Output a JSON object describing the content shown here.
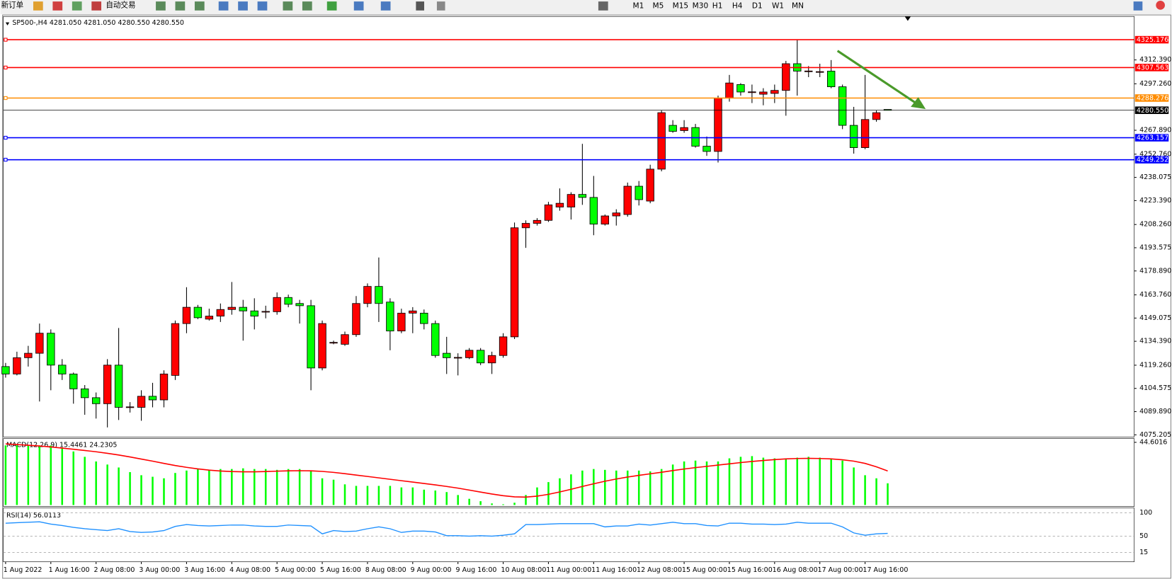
{
  "toolbar": {
    "new_order": "新订单",
    "auto_trading": "自动交易",
    "timeframes": [
      "M1",
      "M5",
      "M15",
      "M30",
      "H1",
      "H4",
      "D1",
      "W1",
      "MN"
    ]
  },
  "chart_data": [
    {
      "type": "candlestick",
      "title": "SP500-,H4  4281.050 4281.050 4280.550 4280.550",
      "categories": [
        "1 Aug 2022",
        null,
        null,
        null,
        "1 Aug 16:00",
        null,
        null,
        null,
        "2 Aug 08:00",
        null,
        null,
        null,
        "3 Aug 00:00",
        null,
        null,
        null,
        "3 Aug 16:00",
        null,
        null,
        null,
        "4 Aug 08:00",
        null,
        null,
        null,
        "5 Aug 00:00",
        null,
        null,
        null,
        "5 Aug 16:00",
        null,
        null,
        null,
        "8 Aug 08:00",
        null,
        null,
        null,
        "9 Aug 00:00",
        null,
        null,
        null,
        "9 Aug 16:00",
        null,
        null,
        null,
        "10 Aug 08:00",
        null,
        null,
        null,
        "11 Aug 00:00",
        null,
        null,
        null,
        "11 Aug 16:00",
        null,
        null,
        null,
        "12 Aug 08:00",
        null,
        null,
        null,
        "15 Aug 00:00",
        null,
        null,
        null,
        "15 Aug 16:00",
        null,
        null,
        null,
        "16 Aug 08:00",
        null,
        null,
        null,
        "17 Aug 00:00",
        null,
        null,
        null,
        "17 Aug 16:00",
        null,
        null
      ],
      "open": [
        4118.4,
        4113.7,
        4124.0,
        4126.8,
        4139.5,
        4119.3,
        4113.7,
        4104.3,
        4098.7,
        4094.9,
        4119.3,
        4092.6,
        4092.6,
        4099.6,
        4097.3,
        4112.8,
        4145.6,
        4155.9,
        4148.4,
        4150.3,
        4154.5,
        4155.9,
        4153.6,
        4153.0,
        4153.1,
        4162.1,
        4158.3,
        4156.9,
        4117.5,
        4133.4,
        4132.5,
        4138.6,
        4158.3,
        4169.1,
        4159.2,
        4140.9,
        4152.2,
        4152.2,
        4145.6,
        4126.8,
        4124.0,
        4124.0,
        4128.7,
        4120.7,
        4125.4,
        4137.2,
        4206.2,
        4209.0,
        4210.9,
        4219.3,
        4219.3,
        4227.3,
        4225.4,
        4208.5,
        4213.7,
        4214.6,
        4232.5,
        4223.1,
        4243.3,
        4271.0,
        4267.7,
        4269.6,
        4257.8,
        4254.5,
        4288.3,
        4296.8,
        4292.0,
        4290.7,
        4291.2,
        4293.1,
        4310.0,
        4305.2,
        4304.8,
        4305.3,
        4295.4,
        4271.0,
        4256.9,
        4274.7,
        4281.05
      ],
      "high": [
        4120.7,
        4127.8,
        4131.5,
        4145.6,
        4141.9,
        4123.1,
        4114.6,
        4106.7,
        4102.0,
        4123.1,
        4142.8,
        4095.9,
        4103.4,
        4108.1,
        4116.0,
        4147.5,
        4168.6,
        4157.4,
        4155.0,
        4158.3,
        4171.9,
        4160.6,
        4161.6,
        4156.9,
        4165.3,
        4163.9,
        4160.6,
        4160.6,
        4147.5,
        4134.8,
        4140.5,
        4163.0,
        4171.0,
        4187.4,
        4161.6,
        4155.0,
        4156.0,
        4154.5,
        4147.5,
        4137.2,
        4126.8,
        4130.1,
        4130.1,
        4127.8,
        4139.5,
        4209.5,
        4210.9,
        4212.3,
        4222.6,
        4231.1,
        4228.7,
        4259.3,
        4239.0,
        4214.6,
        4217.9,
        4234.8,
        4235.8,
        4246.1,
        4280.4,
        4274.3,
        4274.3,
        4271.9,
        4263.9,
        4289.8,
        4302.9,
        4297.7,
        4296.8,
        4294.5,
        4296.8,
        4311.8,
        4325.0,
        4308.5,
        4310.0,
        4312.3,
        4296.8,
        4282.7,
        4302.9,
        4280.4,
        4281.05
      ],
      "low": [
        4111.4,
        4112.8,
        4118.4,
        4096.3,
        4103.4,
        4109.9,
        4094.9,
        4087.9,
        4085.5,
        4079.9,
        4084.6,
        4089.3,
        4084.1,
        4092.6,
        4092.6,
        4109.9,
        4139.5,
        4148.4,
        4147.5,
        4146.6,
        4151.2,
        4134.8,
        4141.9,
        4148.9,
        4151.2,
        4155.9,
        4145.6,
        4103.4,
        4116.0,
        4132.5,
        4131.5,
        4137.2,
        4155.9,
        4146.6,
        4128.7,
        4139.5,
        4139.5,
        4141.9,
        4124.0,
        4113.7,
        4112.8,
        4123.1,
        4119.3,
        4113.7,
        4124.0,
        4135.8,
        4193.5,
        4207.6,
        4209.9,
        4217.0,
        4211.4,
        4220.7,
        4201.5,
        4207.6,
        4207.6,
        4213.2,
        4220.3,
        4221.7,
        4241.9,
        4266.3,
        4266.3,
        4256.9,
        4251.7,
        4247.5,
        4286.0,
        4289.8,
        4285.1,
        4283.7,
        4285.1,
        4277.1,
        4289.8,
        4301.5,
        4301.5,
        4294.5,
        4268.6,
        4253.1,
        4255.9,
        4273.3,
        4280.55
      ],
      "close": [
        4113.7,
        4124.0,
        4126.8,
        4139.5,
        4119.3,
        4113.7,
        4104.3,
        4098.7,
        4094.9,
        4119.3,
        4092.6,
        4092.9,
        4099.6,
        4097.3,
        4113.7,
        4145.6,
        4155.9,
        4149.3,
        4150.3,
        4154.5,
        4155.9,
        4153.6,
        4150.3,
        4153.3,
        4162.1,
        4157.8,
        4156.9,
        4117.5,
        4145.6,
        4133.7,
        4138.6,
        4158.3,
        4169.1,
        4158.3,
        4140.9,
        4152.2,
        4153.6,
        4145.6,
        4125.4,
        4124.0,
        4124.2,
        4128.7,
        4120.7,
        4125.4,
        4137.2,
        4206.2,
        4209.0,
        4210.9,
        4220.7,
        4221.7,
        4227.3,
        4225.4,
        4208.5,
        4213.7,
        4215.6,
        4232.5,
        4224.0,
        4243.3,
        4279.0,
        4267.2,
        4269.6,
        4257.8,
        4254.5,
        4288.3,
        4297.8,
        4292.1,
        4292.2,
        4292.1,
        4293.1,
        4310.0,
        4305.3,
        4305.4,
        4305.0,
        4295.4,
        4271.0,
        4256.9,
        4274.7,
        4279.0,
        4280.55
      ],
      "up_color": "#ff0000",
      "down_color": "#00ff00",
      "ylim": [
        4073.8,
        4339.9
      ],
      "yticks": [
        {
          "value": 4312.39,
          "label": "4312.390"
        },
        {
          "value": 4297.26,
          "label": "4297.260"
        },
        {
          "value": 4267.89,
          "label": "4267.890"
        },
        {
          "value": 4252.76,
          "label": "4252.760"
        },
        4238.075,
        {
          "value": 4223.39,
          "label": "4223.390"
        },
        {
          "value": 4208.26,
          "label": "4208.260"
        },
        4193.575,
        {
          "value": 4178.89,
          "label": "4178.890"
        },
        {
          "value": 4163.76,
          "label": "4163.760"
        },
        4149.075,
        {
          "value": 4134.39,
          "label": "4134.390"
        },
        {
          "value": 4119.26,
          "label": "4119.260"
        },
        4104.575,
        {
          "value": 4089.89,
          "label": "4089.890"
        },
        4075.205
      ],
      "hlines": [
        {
          "value": 4325.176,
          "label": "4325.176",
          "color": "#ff0000"
        },
        {
          "value": 4307.563,
          "label": "4307.563",
          "color": "#ff0000"
        },
        {
          "value": 4288.276,
          "label": "4288.276",
          "color": "#ff8c00"
        },
        {
          "value": 4280.55,
          "label": "4280.550",
          "color": "#000000"
        },
        {
          "value": 4263.157,
          "label": "4263.157",
          "color": "#0000ff"
        },
        {
          "value": 4249.252,
          "label": "4249.252",
          "color": "#0000ff"
        }
      ]
    },
    {
      "type": "macd",
      "title": "MACD(12,26,9) 15.4461 24.2305",
      "ylim": [
        -1.1,
        47.3
      ],
      "yticks": [
        44.6016
      ],
      "histogram": {
        "color": "#00ff00",
        "values": [
          42.4,
          42.4,
          42.4,
          42.4,
          42.4,
          40.8,
          38.1,
          34.3,
          31.0,
          28.8,
          26.7,
          23.4,
          21.2,
          20.1,
          19.0,
          22.8,
          24.5,
          25.6,
          25.0,
          25.6,
          25.6,
          26.1,
          25.6,
          25.6,
          25.0,
          25.6,
          25.6,
          24.5,
          19.0,
          18.0,
          14.7,
          13.6,
          13.6,
          13.6,
          13.6,
          12.5,
          12.5,
          10.9,
          10.3,
          9.2,
          7.1,
          4.4,
          2.7,
          1.1,
          0.5,
          1.6,
          7.1,
          12.5,
          16.3,
          19.0,
          21.8,
          24.5,
          25.6,
          25.0,
          24.5,
          24.5,
          24.5,
          23.9,
          25.6,
          28.8,
          31.0,
          31.6,
          31.0,
          31.0,
          33.2,
          34.3,
          34.8,
          33.7,
          33.2,
          33.2,
          33.7,
          34.3,
          33.7,
          33.2,
          31.6,
          26.7,
          21.2,
          19.0,
          15.4461
        ]
      },
      "signal": {
        "color": "#ff0000",
        "values": [
          43.5,
          43.0,
          42.5,
          42.0,
          41.3,
          40.5,
          39.7,
          38.8,
          37.9,
          36.8,
          35.6,
          34.2,
          32.7,
          31.2,
          29.6,
          28.1,
          26.8,
          25.7,
          24.8,
          24.2,
          23.8,
          23.6,
          23.6,
          23.8,
          24.1,
          24.3,
          24.4,
          24.3,
          23.9,
          23.2,
          22.3,
          21.3,
          20.3,
          19.3,
          18.3,
          17.3,
          16.3,
          15.3,
          14.3,
          13.2,
          12.0,
          10.6,
          9.2,
          7.8,
          6.6,
          5.8,
          5.6,
          6.3,
          7.6,
          9.3,
          11.2,
          13.2,
          15.1,
          16.9,
          18.5,
          19.9,
          21.1,
          22.2,
          23.3,
          24.5,
          25.6,
          26.6,
          27.5,
          28.4,
          29.3,
          30.2,
          31.0,
          31.7,
          32.3,
          32.8,
          33.1,
          33.2,
          33.1,
          32.8,
          32.2,
          31.2,
          29.6,
          27.2,
          24.2305
        ]
      }
    },
    {
      "type": "line",
      "title": "RSI(14) 56.0113",
      "color": "#1e90ff",
      "ylim": [
        -5.4,
        110.7
      ],
      "yticks": [
        100,
        50,
        15
      ],
      "values": [
        78,
        79,
        80,
        81,
        76,
        73,
        69,
        66,
        64,
        62,
        66,
        60,
        58,
        59,
        62,
        71,
        75,
        73,
        72,
        73,
        74,
        74,
        72,
        71,
        71,
        74,
        73,
        72,
        55,
        62,
        60,
        61,
        66,
        70,
        66,
        58,
        61,
        61,
        59,
        51,
        51,
        50,
        51,
        50,
        52,
        55,
        75,
        75,
        76,
        77,
        77,
        77,
        77,
        70,
        72,
        72,
        76,
        74,
        77,
        80,
        77,
        77,
        73,
        72,
        78,
        78,
        76,
        76,
        75,
        76,
        80,
        78,
        78,
        78,
        70,
        57,
        52,
        55,
        56.0113
      ]
    }
  ]
}
